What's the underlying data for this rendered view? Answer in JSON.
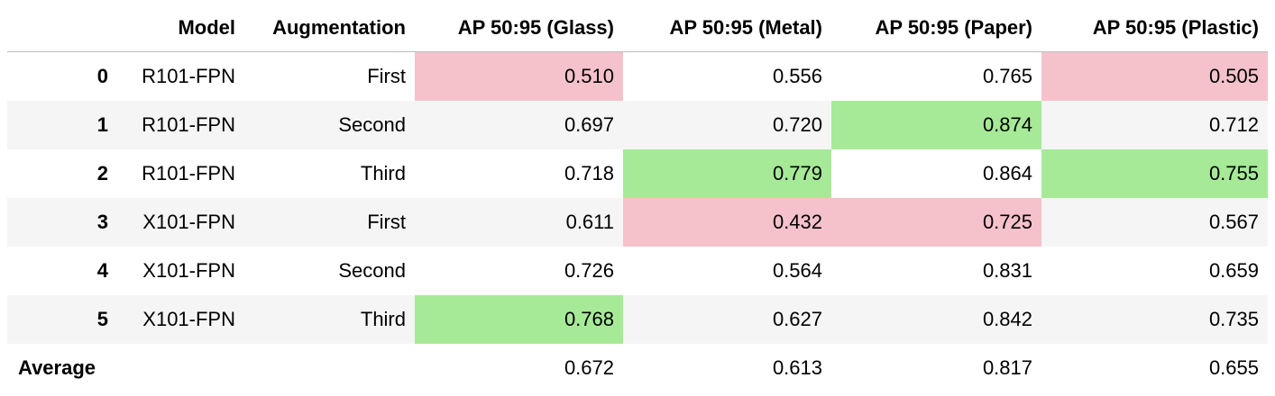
{
  "columns": {
    "index": "",
    "model": "Model",
    "augmentation": "Augmentation",
    "glass": "AP 50:95 (Glass)",
    "metal": "AP 50:95 (Metal)",
    "paper": "AP 50:95 (Paper)",
    "plastic": "AP 50:95 (Plastic)"
  },
  "rows": [
    {
      "index": "0",
      "model": "R101-FPN",
      "augmentation": "First",
      "glass": "0.510",
      "metal": "0.556",
      "paper": "0.765",
      "plastic": "0.505"
    },
    {
      "index": "1",
      "model": "R101-FPN",
      "augmentation": "Second",
      "glass": "0.697",
      "metal": "0.720",
      "paper": "0.874",
      "plastic": "0.712"
    },
    {
      "index": "2",
      "model": "R101-FPN",
      "augmentation": "Third",
      "glass": "0.718",
      "metal": "0.779",
      "paper": "0.864",
      "plastic": "0.755"
    },
    {
      "index": "3",
      "model": "X101-FPN",
      "augmentation": "First",
      "glass": "0.611",
      "metal": "0.432",
      "paper": "0.725",
      "plastic": "0.567"
    },
    {
      "index": "4",
      "model": "X101-FPN",
      "augmentation": "Second",
      "glass": "0.726",
      "metal": "0.564",
      "paper": "0.831",
      "plastic": "0.659"
    },
    {
      "index": "5",
      "model": "X101-FPN",
      "augmentation": "Third",
      "glass": "0.768",
      "metal": "0.627",
      "paper": "0.842",
      "plastic": "0.735"
    }
  ],
  "average": {
    "label": "Average",
    "model": "",
    "augmentation": "",
    "glass": "0.672",
    "metal": "0.613",
    "paper": "0.817",
    "plastic": "0.655"
  },
  "highlight": {
    "min_color": "#f5c2cb",
    "max_color": "#a6ea98",
    "stripe_color": "#f5f5f5",
    "min_cells": {
      "glass": 0,
      "metal": 3,
      "paper": 3,
      "plastic": 0
    },
    "max_cells": {
      "glass": 5,
      "metal": 2,
      "paper": 1,
      "plastic": 2
    }
  }
}
